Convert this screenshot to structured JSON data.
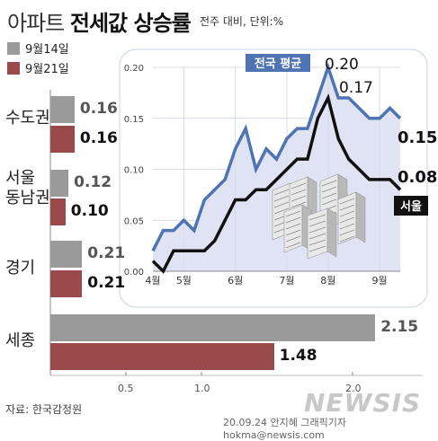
{
  "title": {
    "part1": "아파트",
    "part2": "전세값 상승률"
  },
  "subtitle": "전주 대비, 단위:%",
  "legend": [
    {
      "label": "9월14일",
      "color": "#9a9a9a"
    },
    {
      "label": "9월21일",
      "color": "#9b4a4c"
    }
  ],
  "chart_data": [
    {
      "type": "bar",
      "orientation": "horizontal",
      "categories": [
        "수도권",
        "서울\n동남권",
        "경기",
        "세종"
      ],
      "series": [
        {
          "name": "9월14일",
          "values": [
            0.16,
            0.12,
            0.21,
            2.15
          ]
        },
        {
          "name": "9월21일",
          "values": [
            0.16,
            0.1,
            0.21,
            1.48
          ]
        }
      ],
      "value_labels": [
        [
          "0.16",
          "0.12",
          "0.21",
          "2.15"
        ],
        [
          "0.16",
          "0.10",
          "0.21",
          "1.48"
        ]
      ],
      "x_ticks": [
        "0.5",
        "1.0",
        "2.0"
      ],
      "xlim": [
        0,
        2.45
      ]
    },
    {
      "type": "line",
      "y_ticks": [
        "0.00",
        "0.05",
        "0.10",
        "0.15",
        "0.20"
      ],
      "ylim": [
        0,
        0.2
      ],
      "month_labels": [
        "4월",
        "5월",
        "6월",
        "7월",
        "8월",
        "9월"
      ],
      "series": [
        {
          "name": "전국 평균",
          "color": "#4f74b3",
          "values": [
            0.02,
            0.04,
            0.04,
            0.05,
            0.04,
            0.07,
            0.08,
            0.09,
            0.12,
            0.14,
            0.1,
            0.12,
            0.11,
            0.13,
            0.14,
            0.14,
            0.17,
            0.2,
            0.17,
            0.17,
            0.16,
            0.15,
            0.15,
            0.16,
            0.15
          ]
        },
        {
          "name": "서울",
          "color": "#111111",
          "values": [
            0.01,
            0,
            0.02,
            0.02,
            0.02,
            0.02,
            0.03,
            0.05,
            0.07,
            0.07,
            0.08,
            0.08,
            0.09,
            0.1,
            0.11,
            0.11,
            0.15,
            0.17,
            0.13,
            0.11,
            0.1,
            0.09,
            0.09,
            0.09,
            0.08
          ]
        }
      ],
      "annotations": [
        "0.20",
        "0.17",
        "0.15",
        "0.08"
      ]
    }
  ],
  "source": "자료: 한국감정원",
  "credit": "20.09.24 안지혜 그래픽기자 hokma@newsis.com",
  "logo": "NEWSIS"
}
